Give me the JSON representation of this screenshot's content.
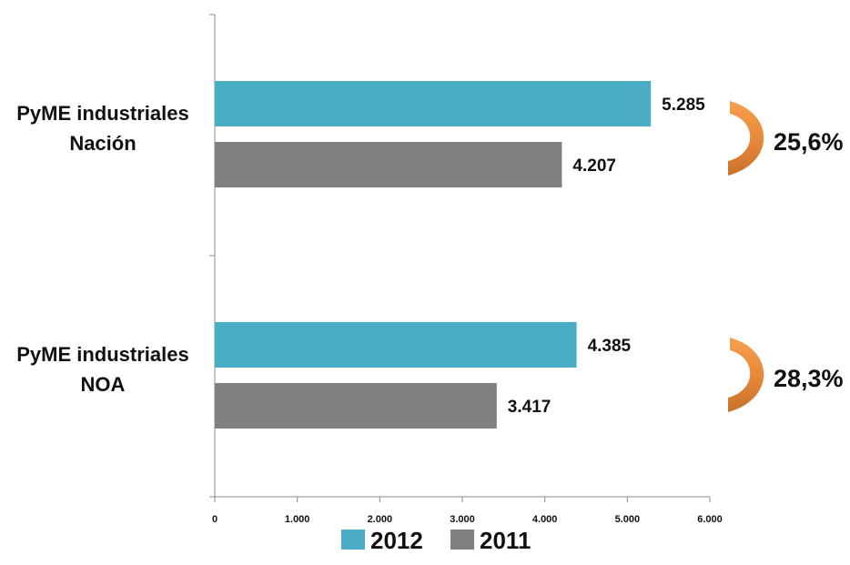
{
  "chart_data": {
    "type": "bar",
    "orientation": "horizontal",
    "title": "",
    "xlabel": "",
    "ylabel": "",
    "categories": [
      [
        "PyME industriales",
        "Nación"
      ],
      [
        "PyME industriales",
        "NOA"
      ]
    ],
    "series": [
      {
        "name": "2012",
        "color": "#4BACC6",
        "values": [
          5285,
          4385
        ],
        "labels": [
          "5.285",
          "4.385"
        ]
      },
      {
        "name": "2011",
        "color": "#808080",
        "values": [
          4207,
          3417
        ],
        "labels": [
          "4.207",
          "3.417"
        ]
      }
    ],
    "xlim": [
      0,
      6000
    ],
    "xticks": [
      0,
      1000,
      2000,
      3000,
      4000,
      5000,
      6000
    ],
    "xtick_labels": [
      "0",
      "1.000",
      "2.000",
      "3.000",
      "4.000",
      "5.000",
      "6.000"
    ],
    "growth_labels": [
      "25,6%",
      "28,3%"
    ],
    "growth_arc_color": "#F79646",
    "grid": false,
    "legend_position": "bottom"
  }
}
